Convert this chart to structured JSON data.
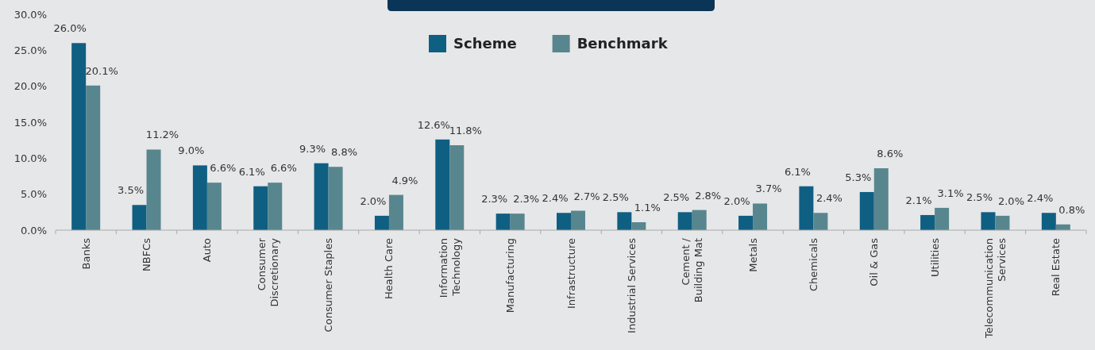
{
  "chart_data": {
    "type": "bar",
    "categories": [
      "Banks",
      "NBFCs",
      "Auto",
      "Consumer Discretionary",
      "Consumer Staples",
      "Health Care",
      "Information Technology",
      "Manufacturing",
      "Infrastructure",
      "Industrial Services",
      "Cement / Building Mat",
      "Metals",
      "Chemicals",
      "Oil & Gas",
      "Utilities",
      "Telecommunication Services",
      "Real Estate"
    ],
    "series": [
      {
        "name": "Scheme",
        "color": "#0f5f82",
        "values": [
          26.0,
          3.5,
          9.0,
          6.1,
          9.3,
          2.0,
          12.6,
          2.3,
          2.4,
          2.5,
          2.5,
          2.0,
          6.1,
          5.3,
          2.1,
          2.5,
          2.4
        ],
        "value_labels": [
          "26.0%",
          "3.5%",
          "9.0%",
          "6.1%",
          "9.3%",
          "2.0%",
          "12.6%",
          "2.3%",
          "2.4%",
          "2.5%",
          "2.5%",
          "2.0%",
          "6.1%",
          "5.3%",
          "2.1%",
          "2.5%",
          "2.4%"
        ]
      },
      {
        "name": "Benchmark",
        "color": "#58868f",
        "values": [
          20.1,
          11.2,
          6.6,
          6.6,
          8.8,
          4.9,
          11.8,
          2.3,
          2.7,
          1.1,
          2.8,
          3.7,
          2.4,
          8.6,
          3.1,
          2.0,
          0.8
        ],
        "value_labels": [
          "20.1%",
          "11.2%",
          "6.6%",
          "6.6%",
          "8.8%",
          "4.9%",
          "11.8%",
          "2.3%",
          "2.7%",
          "1.1%",
          "2.8%",
          "3.7%",
          "2.4%",
          "8.6%",
          "3.1%",
          "2.0%",
          "0.8%"
        ]
      }
    ],
    "ylim": [
      0,
      30
    ],
    "yticks": [
      {
        "value": 0,
        "label": "0.0%"
      },
      {
        "value": 5,
        "label": "5.0%"
      },
      {
        "value": 10,
        "label": "10.0%"
      },
      {
        "value": 15,
        "label": "15.0%"
      },
      {
        "value": 20,
        "label": "20.0%"
      },
      {
        "value": 25,
        "label": "25.0%"
      },
      {
        "value": 30,
        "label": "30.0%"
      }
    ],
    "legend": "top"
  }
}
